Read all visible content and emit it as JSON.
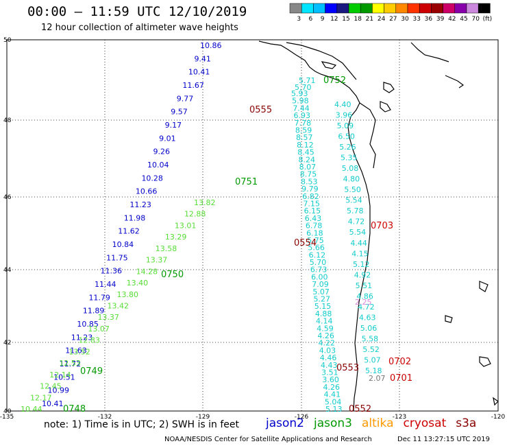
{
  "title": "00:00 – 11:59 UTC 12/10/2019",
  "subtitle": "12 hour collection of altimeter wave heights",
  "colorbar": {
    "colors": [
      "#888888",
      "#00e5ff",
      "#00bfff",
      "#0000ff",
      "#1a1a80",
      "#00cc00",
      "#009900",
      "#ffff00",
      "#ffcc00",
      "#ff8800",
      "#ff3300",
      "#cc0000",
      "#990000",
      "#cc0066",
      "#8800aa",
      "#cc88dd",
      "#000000"
    ],
    "labels": [
      "3",
      "6",
      "9",
      "12",
      "15",
      "18",
      "21",
      "24",
      "27",
      "30",
      "33",
      "36",
      "39",
      "42",
      "45",
      "70",
      "(ft)"
    ]
  },
  "axes": {
    "lat_labels": [
      "50",
      "48",
      "46",
      "44",
      "42",
      "40"
    ],
    "lon_labels": [
      "-135",
      "-132",
      "-129",
      "-126",
      "-123",
      "-120"
    ]
  },
  "note": "note:  1) Time is in UTC;  2) SWH is in feet",
  "legend": [
    {
      "name": "jason2",
      "color": "#0000cc"
    },
    {
      "name": "jason3",
      "color": "#009900"
    },
    {
      "name": "altika",
      "color": "#ff9900"
    },
    {
      "name": "cryosat",
      "color": "#cc0000"
    },
    {
      "name": "s3a",
      "color": "#880000"
    }
  ],
  "credit": "NOAA/NESDIS Center for Satellite Applications and Research",
  "timestamp": "Dec 11 13:27:15 UTC 2019",
  "tracks": {
    "jason2_blue": [
      "10.86",
      "9.41",
      "10.41",
      "11.67",
      "9.77",
      "9.57",
      "9.17",
      "9.01",
      "9.26",
      "10.04",
      "10.28",
      "10.66",
      "11.23",
      "11.98",
      "11.62",
      "10.84",
      "11.75",
      "11.36",
      "11.44",
      "11.79",
      "11.89",
      "10.85",
      "11.23",
      "11.63",
      "11.72",
      "10.51",
      "10.99",
      "10.41"
    ],
    "jason3_green": [
      "13.82",
      "12.88",
      "13.01",
      "13.29",
      "13.58",
      "13.37",
      "14.28",
      "13.40",
      "13.80",
      "13.42",
      "13.37",
      "13.07",
      "12.83",
      "13.52",
      "12.53",
      "12.14",
      "12.45",
      "12.17",
      "10.44"
    ],
    "cyan_track_a": [
      "5.93",
      "5.98",
      "7.44",
      "6.93",
      "7.78",
      "8.59",
      "8.57",
      "8.12",
      "8.45",
      "8.24",
      "8.07",
      "8.75",
      "8.53",
      "9.79",
      "6.82",
      "7.15",
      "6.15",
      "6.43",
      "6.78",
      "6.18",
      "5.75",
      "5.66",
      "6.12",
      "5.70",
      "6.73",
      "6.00",
      "7.09",
      "5.07",
      "5.27",
      "5.15",
      "4.88",
      "4.14",
      "4.59",
      "4.26",
      "4.22",
      "4.03",
      "4.46",
      "4.43",
      "3.51",
      "3.60",
      "4.26",
      "4.41",
      "5.04",
      "5.13"
    ],
    "cyan_track_b": [
      "4.40",
      "3.96",
      "5.09",
      "6.50",
      "5.26",
      "5.35",
      "5.08",
      "4.80",
      "5.50",
      "5.54",
      "5.78",
      "4.72",
      "5.54",
      "4.44",
      "4.15",
      "5.12",
      "4.92",
      "5.51",
      "4.86",
      "4.72",
      "4.63",
      "5.06",
      "5.58",
      "5.52",
      "5.07",
      "5.18"
    ],
    "misc": {
      "pink": "2.25",
      "gray": "2.07",
      "coast_top": "5.70",
      "coast_top2": "5.71"
    }
  },
  "time_labels": [
    {
      "text": "0555",
      "color": "#880000"
    },
    {
      "text": "0752",
      "color": "#009900"
    },
    {
      "text": "0751",
      "color": "#009900"
    },
    {
      "text": "0554",
      "color": "#880000"
    },
    {
      "text": "0703",
      "color": "#cc0000"
    },
    {
      "text": "0750",
      "color": "#009900"
    },
    {
      "text": "0702",
      "color": "#cc0000"
    },
    {
      "text": "0553",
      "color": "#880000"
    },
    {
      "text": "0701",
      "color": "#cc0000"
    },
    {
      "text": "0749",
      "color": "#009900"
    },
    {
      "text": "0748",
      "color": "#009900"
    },
    {
      "text": "0552",
      "color": "#880000"
    }
  ]
}
